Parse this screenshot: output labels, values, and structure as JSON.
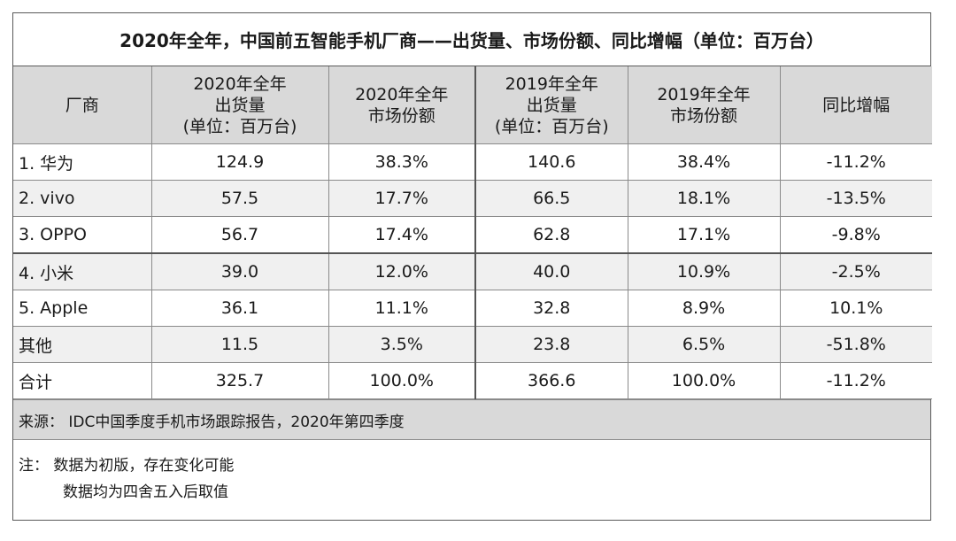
{
  "title": "2020年全年，中国前五智能手机厂商——出货量、市场份额、同比增幅（单位：百万台）",
  "headers": {
    "vendor": "厂商",
    "ship2020": [
      "2020年全年",
      "出货量",
      "(单位：百万台)"
    ],
    "share2020": [
      "2020年全年",
      "市场份额"
    ],
    "ship2019": [
      "2019年全年",
      "出货量",
      "(单位：百万台)"
    ],
    "share2019": [
      "2019年全年",
      "市场份额"
    ],
    "yoy": "同比增幅"
  },
  "rows": [
    {
      "vendor": "1. 华为",
      "ship2020": "124.9",
      "share2020": "38.3%",
      "ship2019": "140.6",
      "share2019": "38.4%",
      "yoy": "-11.2%"
    },
    {
      "vendor": "2. vivo",
      "ship2020": "57.5",
      "share2020": "17.7%",
      "ship2019": "66.5",
      "share2019": "18.1%",
      "yoy": "-13.5%"
    },
    {
      "vendor": "3. OPPO",
      "ship2020": "56.7",
      "share2020": "17.4%",
      "ship2019": "62.8",
      "share2019": "17.1%",
      "yoy": "-9.8%"
    },
    {
      "vendor": "4. 小米",
      "ship2020": "39.0",
      "share2020": "12.0%",
      "ship2019": "40.0",
      "share2019": "10.9%",
      "yoy": "-2.5%"
    },
    {
      "vendor": "5. Apple",
      "ship2020": "36.1",
      "share2020": "11.1%",
      "ship2019": "32.8",
      "share2019": "8.9%",
      "yoy": "10.1%"
    },
    {
      "vendor": "其他",
      "ship2020": "11.5",
      "share2020": "3.5%",
      "ship2019": "23.8",
      "share2019": "6.5%",
      "yoy": "-51.8%"
    },
    {
      "vendor": "合计",
      "ship2020": "325.7",
      "share2020": "100.0%",
      "ship2019": "366.6",
      "share2019": "100.0%",
      "yoy": "-11.2%"
    }
  ],
  "source": "来源：  IDC中国季度手机市场跟踪报告，2020年第四季度",
  "note": {
    "line1": "注：  数据为初版，存在变化可能",
    "line2": "数据均为四舍五入后取值"
  }
}
